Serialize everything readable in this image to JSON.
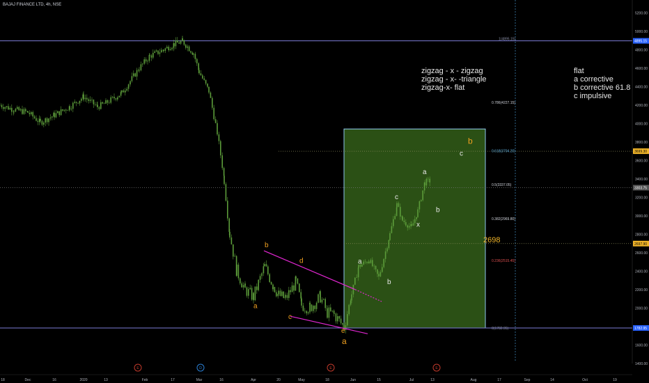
{
  "header": {
    "symbol_title": "BAJAJ FINANCE LTD, 4h, NSE"
  },
  "colors": {
    "background": "#000000",
    "candle": "#5c9c3a",
    "target_box_fill": "#3a6b1c",
    "target_box_border": "#8ec6f0",
    "wedge_line": "#e026d0",
    "wave_label_orange": "#f0a020",
    "wave_label_white": "#e8e8e8",
    "price_line": "#7b7bd6",
    "badge_blue": "#2962ff",
    "badge_yellow": "#f0b429",
    "badge_gray": "#555555",
    "event_marker": "#c0392b",
    "event_marker_blue": "#2a7fd4"
  },
  "chart_data": {
    "type": "candlestick",
    "symbol": "BAJAJ FINANCE LTD",
    "interval": "4h",
    "exchange": "NSE",
    "ylim": [
      1300,
      5300
    ],
    "y_ticks": [
      "5200.00",
      "5000.00",
      "4800.00",
      "4600.00",
      "4400.00",
      "4200.00",
      "4000.00",
      "3800.00",
      "3600.00",
      "3400.00",
      "3200.00",
      "3000.00",
      "2800.00",
      "2600.00",
      "2400.00",
      "2200.00",
      "2000.00",
      "1800.00",
      "1600.00",
      "1400.00"
    ],
    "x_ticks": [
      "18",
      "Dec",
      "16",
      "2020",
      "13",
      "Feb",
      "17",
      "Mar",
      "16",
      "Apr",
      "20",
      "May",
      "18",
      "Jun",
      "15",
      "Jul",
      "13",
      "Aug",
      "17",
      "Sep",
      "14",
      "Oct",
      "19"
    ],
    "price_badges": [
      {
        "label": "4895.15",
        "value": 4895.15,
        "color": "blue"
      },
      {
        "label": "3699.30",
        "value": 3699.3,
        "color": "yellow"
      },
      {
        "label": "3303.75",
        "value": 3303.75,
        "color": "gray"
      },
      {
        "label": "2697.90",
        "value": 2697.9,
        "color": "yellow"
      },
      {
        "label": "1782.95",
        "value": 1782.95,
        "color": "blue"
      }
    ],
    "fib_levels": [
      {
        "label": "1(4895.15)",
        "value": 4895.15,
        "color": "#8a8fa8"
      },
      {
        "label": "0.786(4227.15)",
        "value": 4227.15,
        "color": "#d1d4dc"
      },
      {
        "label": "0.618(3704.20)",
        "value": 3704.2,
        "color": "#5fb0e0"
      },
      {
        "label": "0.5(3337.05)",
        "value": 3337.05,
        "color": "#d1d4dc"
      },
      {
        "label": "0.382(2969.80)",
        "value": 2969.8,
        "color": "#d1d4dc"
      },
      {
        "label": "0.236(2515.45)",
        "value": 2515.45,
        "color": "#e05050"
      },
      {
        "label": "0(1782.95)",
        "value": 1782.95,
        "color": "#8a8fa8"
      }
    ],
    "horizontal_levels": [
      3699.3,
      3303.75,
      2697.9
    ],
    "target_label": "2698",
    "ohlc_path": [
      [
        "18",
        4200
      ],
      [
        "Dec",
        4110
      ],
      [
        "16",
        4010
      ],
      [
        "2020",
        4290
      ],
      [
        "13",
        4180
      ],
      [
        "Feb",
        4760
      ],
      [
        "17",
        4880
      ],
      [
        "Mar",
        4330
      ],
      [
        "16",
        2570
      ],
      [
        "Apr",
        2120
      ],
      [
        "20",
        2140
      ],
      [
        "May",
        1980
      ],
      [
        "18",
        1790
      ],
      [
        "Jun",
        2330
      ],
      [
        "15",
        2450
      ],
      [
        "Jul",
        3360
      ]
    ],
    "wave_labels": [
      {
        "text": "a",
        "date": "Apr",
        "price": 2000,
        "color": "orange"
      },
      {
        "text": "b",
        "date": "Apr",
        "price": 2660,
        "color": "orange"
      },
      {
        "text": "c",
        "date": "20",
        "price": 1880,
        "color": "orange"
      },
      {
        "text": "d",
        "date": "20",
        "price": 2490,
        "color": "orange"
      },
      {
        "text": "e",
        "date": "18",
        "price": 1730,
        "color": "orange"
      },
      {
        "text": "a",
        "date": "18",
        "price": 1600,
        "color": "orange"
      },
      {
        "text": "a",
        "date": "Jun",
        "price": 2480,
        "color": "white"
      },
      {
        "text": "b",
        "date": "15",
        "price": 2260,
        "color": "white"
      },
      {
        "text": "c",
        "date": "15",
        "price": 3180,
        "color": "white"
      },
      {
        "text": "x",
        "date": "Jul",
        "price": 2880,
        "color": "white"
      },
      {
        "text": "a",
        "date": "Jul",
        "price": 3450,
        "color": "white"
      },
      {
        "text": "b",
        "date": "13",
        "price": 3040,
        "color": "white"
      },
      {
        "text": "c",
        "date": "Aug",
        "price": 3650,
        "color": "white"
      },
      {
        "text": "b",
        "date": "Aug",
        "price": 3780,
        "color": "orange"
      }
    ],
    "annotations": {
      "left_note": [
        "zigzag - x - zigzag",
        "zigzag - x- -triangle",
        "zigzag-x- flat"
      ],
      "right_note": [
        "flat",
        "a corrective",
        "b corrective 61.8",
        "c impulsive"
      ]
    },
    "event_markers": [
      "E",
      "D",
      "E",
      "E"
    ]
  }
}
